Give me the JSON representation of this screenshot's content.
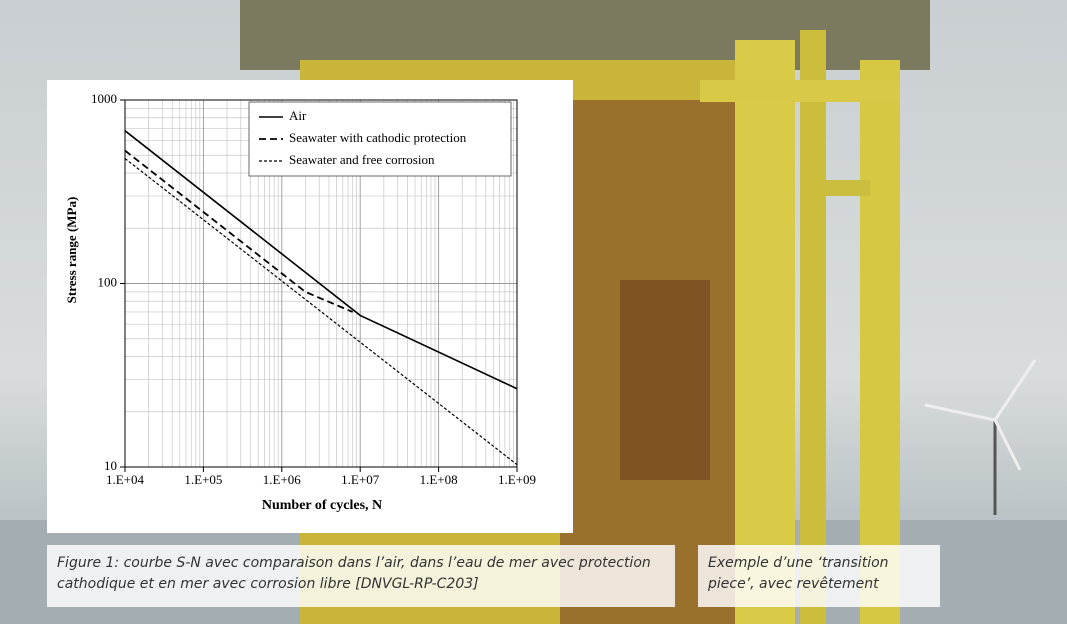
{
  "chart_data": {
    "type": "line",
    "x_label": "Number of cycles, N",
    "y_label": "Stress range (MPa)",
    "xlog": true,
    "ylog": true,
    "grid": true,
    "legend": "upper right",
    "xlim": [
      10000,
      1000000000
    ],
    "xticks": [
      {
        "value": 10000,
        "label": "1.E+04"
      },
      {
        "value": 100000,
        "label": "1.E+05"
      },
      {
        "value": 1000000,
        "label": "1.E+06"
      },
      {
        "value": 10000000,
        "label": "1.E+07"
      },
      {
        "value": 100000000,
        "label": "1.E+08"
      },
      {
        "value": 1000000000,
        "label": "1.E+09"
      }
    ],
    "ylim": [
      10,
      1000
    ],
    "yticks": [
      10,
      100,
      1000
    ],
    "series": [
      {
        "name": "Air",
        "color": "#000000",
        "style": "solid",
        "x": [
          10000,
          10000000,
          1000000000
        ],
        "values": [
          680,
          67,
          26.7
        ]
      },
      {
        "name": "Seawater with cathodic protection",
        "color": "#000000",
        "style": "dashed",
        "x": [
          10000,
          2000000,
          8000000
        ],
        "values": [
          530,
          90,
          70
        ]
      },
      {
        "name": "Seawater and free corrosion",
        "color": "#000000",
        "style": "dotted",
        "x": [
          10000,
          1000000000
        ],
        "values": [
          480,
          10.3
        ]
      }
    ]
  },
  "captions": [
    "Figure 1: courbe S-N avec comparaison dans l’air, dans l’eau de mer avec protection cathodique et en mer avec corrosion libre [DNVGL-RP-C203]",
    "Exemple d’une ‘transition piece’, avec revêtement"
  ]
}
